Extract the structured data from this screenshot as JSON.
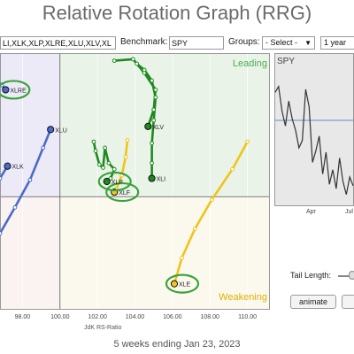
{
  "title": "Relative Rotation Graph (RRG)",
  "controls": {
    "symbols_value": "LI,XLK,XLP,XLRE,XLU,XLV,XL",
    "benchmark_label": "Benchmark:",
    "benchmark_value": "SPY",
    "groups_label": "Groups:",
    "groups_value": "- Select -",
    "period_value": "1 year"
  },
  "chart_data": {
    "type": "scatter",
    "xlabel": "JdK RS-Ratio",
    "x_ticks": [
      "98.00",
      "100.00",
      "102.00",
      "104.00",
      "106.00",
      "108.00",
      "110.00"
    ],
    "xlim": [
      96.8,
      111.2
    ],
    "ylim": [
      92.6,
      109.4
    ],
    "quadrants": {
      "leading": "Leading",
      "weakening": "Weakening"
    },
    "quadrant_colors": {
      "leading": "#e9f3e8",
      "weakening": "#fbf8ee",
      "improving": "#eceaf7",
      "lagging": "#fbf2f2"
    },
    "series": [
      {
        "name": "XLU",
        "color": "#4a6cc8",
        "points": [
          [
            96.8,
            97.6
          ],
          [
            97.6,
            99.3
          ],
          [
            98.4,
            101.1
          ],
          [
            99.1,
            103.2
          ],
          [
            99.5,
            104.4
          ]
        ]
      },
      {
        "name": "XLRE",
        "color": "#4a6cc8",
        "points": [
          [
            96.6,
            107.6
          ],
          [
            96.9,
            107.3
          ],
          [
            97.1,
            107.0
          ]
        ]
      },
      {
        "name": "XLK",
        "color": "#4a6cc8",
        "points": [
          [
            96.8,
            101.2
          ],
          [
            97.2,
            102.0
          ]
        ]
      },
      {
        "name": "XLE",
        "color": "#f0c419",
        "points": [
          [
            110.0,
            103.6
          ],
          [
            109.2,
            101.8
          ],
          [
            108.1,
            99.8
          ],
          [
            107.2,
            97.9
          ],
          [
            106.5,
            96.0
          ],
          [
            106.1,
            94.3
          ]
        ]
      },
      {
        "name": "XLF",
        "color": "#f0c419",
        "points": [
          [
            103.6,
            103.7
          ],
          [
            103.5,
            102.6
          ],
          [
            103.3,
            101.4
          ],
          [
            103.0,
            100.5
          ],
          [
            102.9,
            100.3
          ]
        ]
      },
      {
        "name": "XLP",
        "color": "#1e8a1e",
        "points": [
          [
            101.8,
            103.6
          ],
          [
            101.9,
            103.0
          ],
          [
            102.1,
            102.1
          ],
          [
            102.3,
            101.9
          ],
          [
            102.4,
            103.2
          ],
          [
            102.6,
            102.2
          ],
          [
            102.9,
            101.8
          ],
          [
            102.7,
            101.2
          ],
          [
            102.5,
            101.0
          ]
        ]
      },
      {
        "name": "XLV",
        "color": "#1e8a1e",
        "points": [
          [
            102.9,
            108.9
          ],
          [
            103.9,
            109.0
          ],
          [
            104.5,
            108.1
          ],
          [
            105.1,
            107.0
          ],
          [
            105.0,
            105.7
          ],
          [
            104.7,
            104.6
          ]
        ]
      },
      {
        "name": "XLI",
        "color": "#1e8a1e",
        "points": [
          [
            104.1,
            108.7
          ],
          [
            104.5,
            108.3
          ],
          [
            104.9,
            107.6
          ],
          [
            105.1,
            106.5
          ],
          [
            105.0,
            105.0
          ],
          [
            104.9,
            103.5
          ],
          [
            104.9,
            102.2
          ],
          [
            104.9,
            101.2
          ]
        ]
      }
    ],
    "labels": [
      {
        "text": "XLRE",
        "series": "XLRE"
      },
      {
        "text": "XLU",
        "series": "XLU"
      },
      {
        "text": "XLK",
        "series": "XLK"
      },
      {
        "text": "XLP",
        "series": "XLP"
      },
      {
        "text": "XLF",
        "series": "XLF"
      },
      {
        "text": "XLE",
        "series": "XLE"
      },
      {
        "text": "XLI",
        "series": "XLI"
      },
      {
        "text": "XLV",
        "series": "XLV"
      }
    ],
    "circled": [
      "XLRE",
      "XLP",
      "XLF",
      "XLE"
    ]
  },
  "side_panel": {
    "symbol": "SPY",
    "x_tick": "Apr",
    "x_tick2": "Jul",
    "line_color": "#333333",
    "ref_line_color": "#6b86c9"
  },
  "tail": {
    "label": "Tail Length:",
    "animate_label": "animate"
  },
  "footer": "5 weeks ending Jan 23, 2023"
}
